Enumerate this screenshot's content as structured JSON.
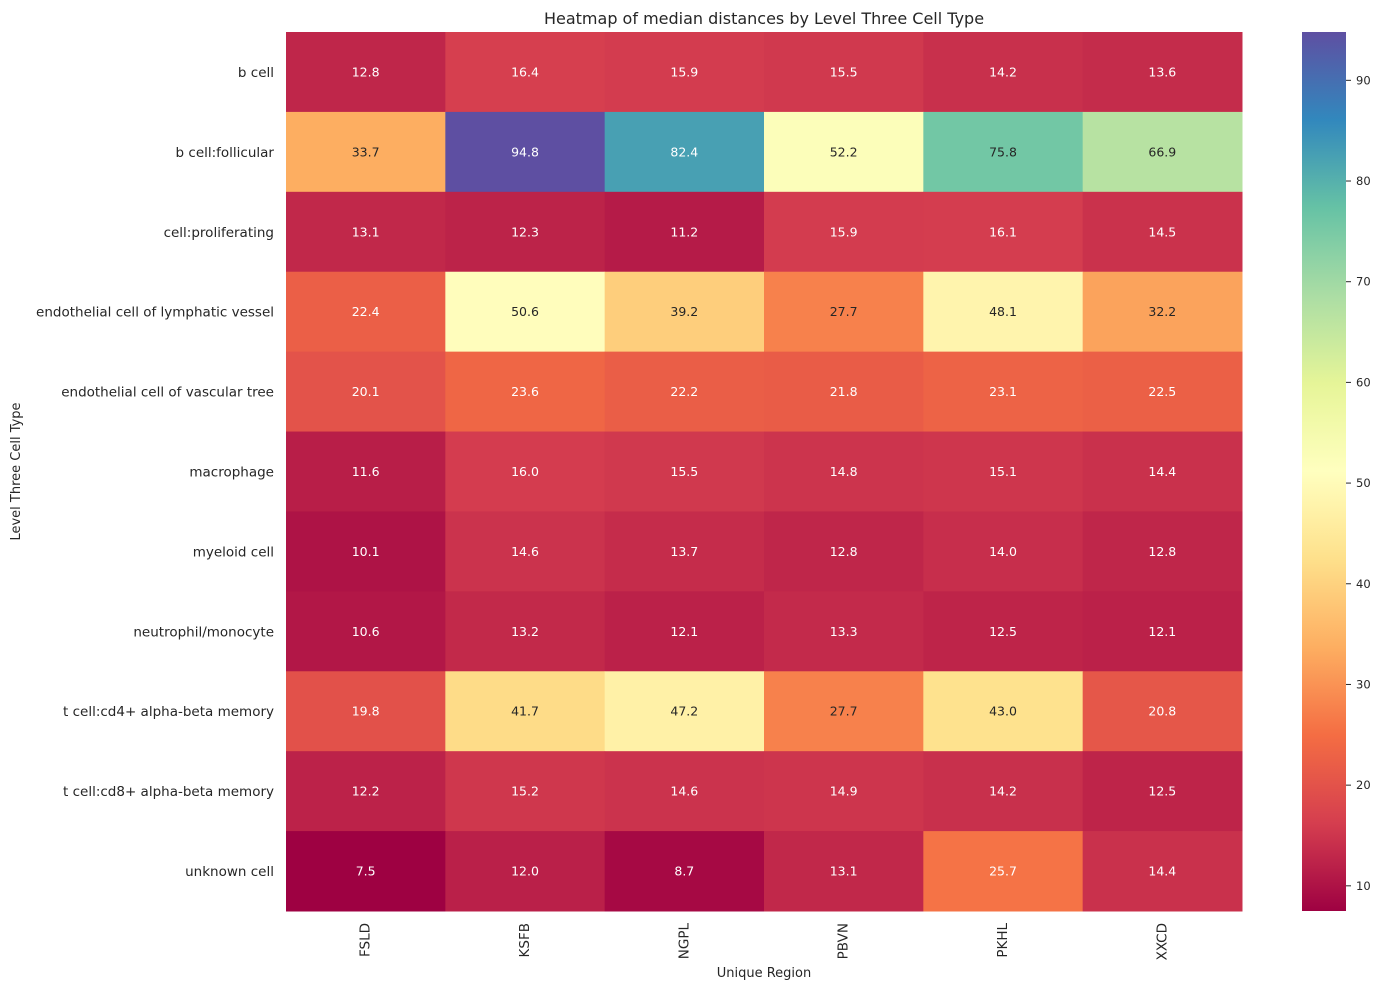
{
  "chart_data": {
    "type": "heatmap",
    "title": "Heatmap of median distances by Level Three Cell Type",
    "xlabel": "Unique Region",
    "ylabel": "Level Three Cell Type",
    "x_categories": [
      "FSLD",
      "KSFB",
      "NGPL",
      "PBVN",
      "PKHL",
      "XXCD"
    ],
    "y_categories": [
      "b cell",
      "b cell:follicular",
      "cell:proliferating",
      "endothelial cell of lymphatic vessel",
      "endothelial cell of vascular tree",
      "macrophage",
      "myeloid cell",
      "neutrophil/monocyte",
      "t cell:cd4+ alpha-beta memory",
      "t cell:cd8+ alpha-beta memory",
      "unknown cell"
    ],
    "values": [
      [
        12.8,
        16.4,
        15.9,
        15.5,
        14.2,
        13.6
      ],
      [
        33.7,
        94.8,
        82.4,
        52.2,
        75.8,
        66.9
      ],
      [
        13.1,
        12.3,
        11.2,
        15.9,
        16.1,
        14.5
      ],
      [
        22.4,
        50.6,
        39.2,
        27.7,
        48.1,
        32.2
      ],
      [
        20.1,
        23.6,
        22.2,
        21.8,
        23.1,
        22.5
      ],
      [
        11.6,
        16.0,
        15.5,
        14.8,
        15.1,
        14.4
      ],
      [
        10.1,
        14.6,
        13.7,
        12.8,
        14.0,
        12.8
      ],
      [
        10.6,
        13.2,
        12.1,
        13.3,
        12.5,
        12.1
      ],
      [
        19.8,
        41.7,
        47.2,
        27.7,
        43.0,
        20.8
      ],
      [
        12.2,
        15.2,
        14.6,
        14.9,
        14.2,
        12.5
      ],
      [
        7.5,
        12.0,
        8.7,
        13.1,
        25.7,
        14.4
      ]
    ],
    "annotation_format": "0.1f",
    "colormap": "Spectral",
    "colorbar": {
      "range": [
        7.5,
        94.8
      ],
      "ticks": [
        10,
        20,
        30,
        40,
        50,
        60,
        70,
        80,
        90
      ],
      "tick_labels": [
        "10",
        "20",
        "30",
        "40",
        "50",
        "60",
        "70",
        "80",
        "90"
      ],
      "placement": "right"
    },
    "grid": false
  }
}
